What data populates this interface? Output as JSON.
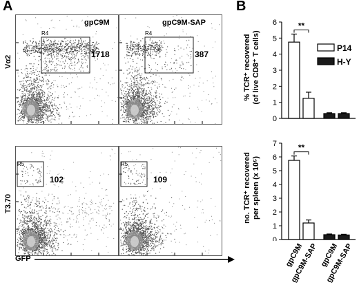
{
  "panel_a": {
    "letter": "A",
    "y_axis_top": "Vα2",
    "y_axis_bottom": "T3.70",
    "x_axis": "GFP",
    "plots": [
      {
        "title": "gpC9M",
        "gate": "R4",
        "count": "1718"
      },
      {
        "title": "gpC9M-SAP",
        "gate": "R4",
        "count": "387"
      },
      {
        "title": "",
        "gate": "R5",
        "count": "102"
      },
      {
        "title": "",
        "gate": "R5",
        "count": "109"
      }
    ]
  },
  "panel_b": {
    "letter": "B",
    "significance": "**"
  },
  "chart_data": [
    {
      "type": "bar",
      "ylabel": "% TCR⁺ recovered\n(of live CD8⁺ T cells)",
      "ylim": [
        0,
        6
      ],
      "yticks": [
        0,
        1,
        2,
        3,
        4,
        5,
        6
      ],
      "categories": [
        "gpC9M",
        "gpC9M-SAP"
      ],
      "series": [
        {
          "name": "P14",
          "values": [
            4.75,
            1.25
          ],
          "errors": [
            0.5,
            0.38
          ],
          "color": "#ffffff"
        },
        {
          "name": "H-Y",
          "values": [
            0.3,
            0.3
          ],
          "errors": [
            0.05,
            0.05
          ],
          "color": "#1a1a1a"
        }
      ],
      "legend": "top-right",
      "annotation": "**"
    },
    {
      "type": "bar",
      "ylabel": "no. TCR⁺ recovered\nper spleen (x 10⁵)",
      "ylim": [
        0,
        7
      ],
      "yticks": [
        0,
        1,
        2,
        3,
        4,
        5,
        6,
        7
      ],
      "categories": [
        "gpC9M",
        "gpC9M-SAP"
      ],
      "series": [
        {
          "name": "P14",
          "values": [
            5.75,
            1.2
          ],
          "errors": [
            0.32,
            0.22
          ],
          "color": "#ffffff"
        },
        {
          "name": "H-Y",
          "values": [
            0.35,
            0.33
          ],
          "errors": [
            0.05,
            0.05
          ],
          "color": "#1a1a1a"
        }
      ],
      "annotation": "**"
    }
  ]
}
